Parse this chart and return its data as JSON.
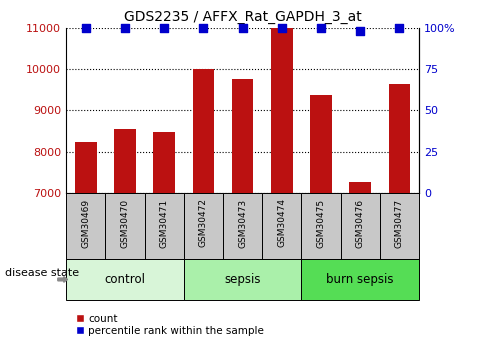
{
  "title": "GDS2235 / AFFX_Rat_GAPDH_3_at",
  "samples": [
    "GSM30469",
    "GSM30470",
    "GSM30471",
    "GSM30472",
    "GSM30473",
    "GSM30474",
    "GSM30475",
    "GSM30476",
    "GSM30477"
  ],
  "counts": [
    8230,
    8550,
    8480,
    10000,
    9760,
    11000,
    9380,
    7270,
    9640
  ],
  "percentiles": [
    100,
    100,
    100,
    100,
    100,
    100,
    100,
    98,
    100
  ],
  "groups": [
    {
      "label": "control",
      "indices": [
        0,
        1,
        2
      ],
      "color": "#d8f5d8"
    },
    {
      "label": "sepsis",
      "indices": [
        3,
        4,
        5
      ],
      "color": "#aaf0aa"
    },
    {
      "label": "burn sepsis",
      "indices": [
        6,
        7,
        8
      ],
      "color": "#55dd55"
    }
  ],
  "bar_color": "#bb1111",
  "dot_color": "#0000cc",
  "ylim_left": [
    7000,
    11000
  ],
  "ylim_right": [
    0,
    100
  ],
  "yticks_left": [
    7000,
    8000,
    9000,
    10000,
    11000
  ],
  "yticks_right": [
    0,
    25,
    50,
    75,
    100
  ],
  "ytick_labels_right": [
    "0",
    "25",
    "50",
    "75",
    "100%"
  ],
  "bar_width": 0.55,
  "dot_size": 35,
  "label_count": "count",
  "label_percentile": "percentile rank within the sample",
  "disease_state_label": "disease state",
  "sample_box_color": "#c8c8c8"
}
